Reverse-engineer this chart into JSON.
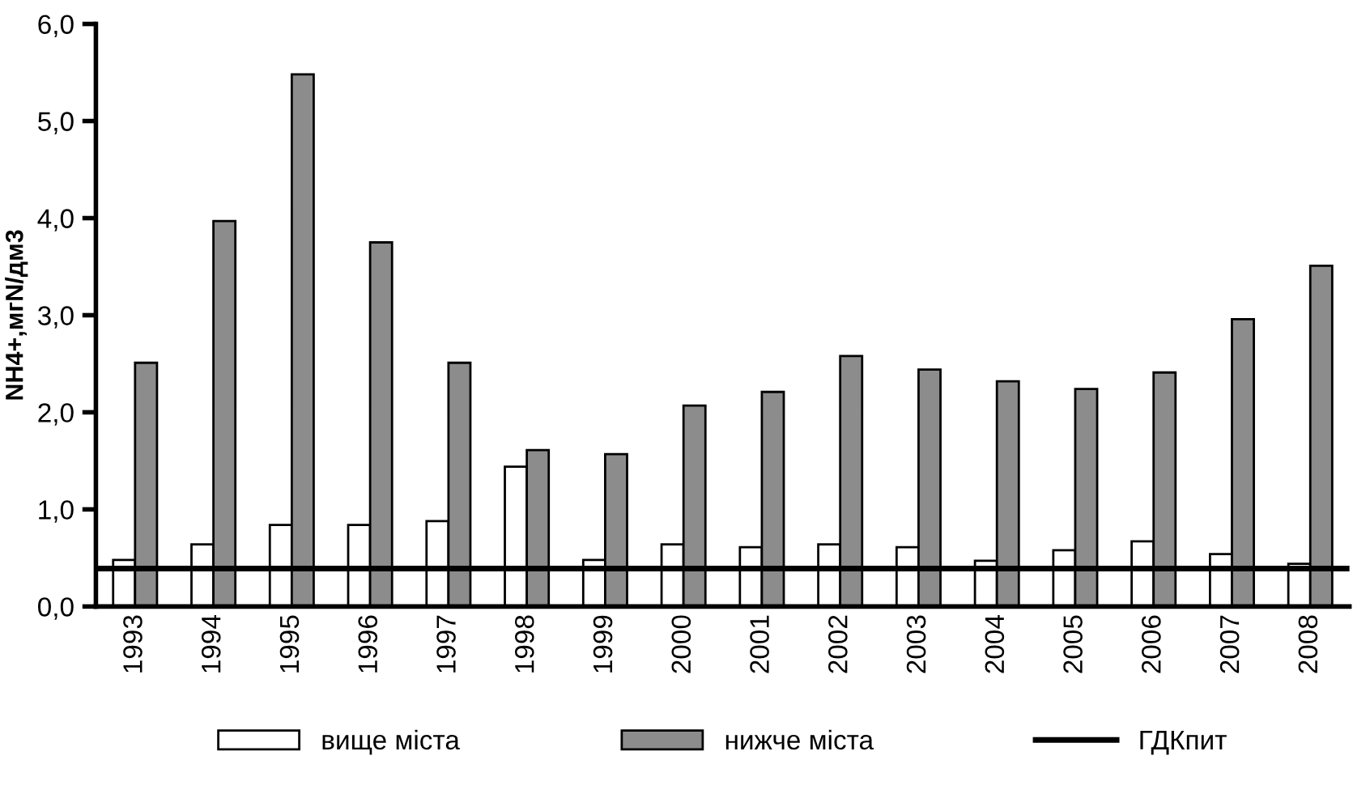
{
  "chart_data": {
    "type": "bar",
    "ylabel": "NH4+,мгN/дм3",
    "categories": [
      "1993",
      "1994",
      "1995",
      "1996",
      "1997",
      "1998",
      "1999",
      "2000",
      "2001",
      "2002",
      "2003",
      "2004",
      "2005",
      "2006",
      "2007",
      "2008"
    ],
    "series": [
      {
        "name": "вище міста",
        "color": "#ffffff",
        "values": [
          0.48,
          0.64,
          0.84,
          0.84,
          0.88,
          1.44,
          0.48,
          0.64,
          0.61,
          0.64,
          0.61,
          0.47,
          0.58,
          0.67,
          0.54,
          0.44
        ]
      },
      {
        "name": "нижче міста",
        "color": "#8c8c8c",
        "values": [
          2.51,
          3.97,
          5.48,
          3.75,
          2.51,
          1.61,
          1.57,
          2.07,
          2.21,
          2.58,
          2.44,
          2.32,
          2.24,
          2.41,
          2.96,
          3.51
        ]
      }
    ],
    "ref_lines": [
      {
        "axis": "y",
        "value": 0.39,
        "label": "ГДКпит",
        "color": "#000000"
      }
    ],
    "ylim": [
      0,
      6
    ],
    "yticks": [
      {
        "value": 0,
        "label": "0,0"
      },
      {
        "value": 1,
        "label": "1,0"
      },
      {
        "value": 2,
        "label": "2,0"
      },
      {
        "value": 3,
        "label": "3,0"
      },
      {
        "value": 4,
        "label": "4,0"
      },
      {
        "value": 5,
        "label": "5,0"
      },
      {
        "value": 6,
        "label": "6,0"
      }
    ],
    "grid": false,
    "legend": "bottom"
  }
}
